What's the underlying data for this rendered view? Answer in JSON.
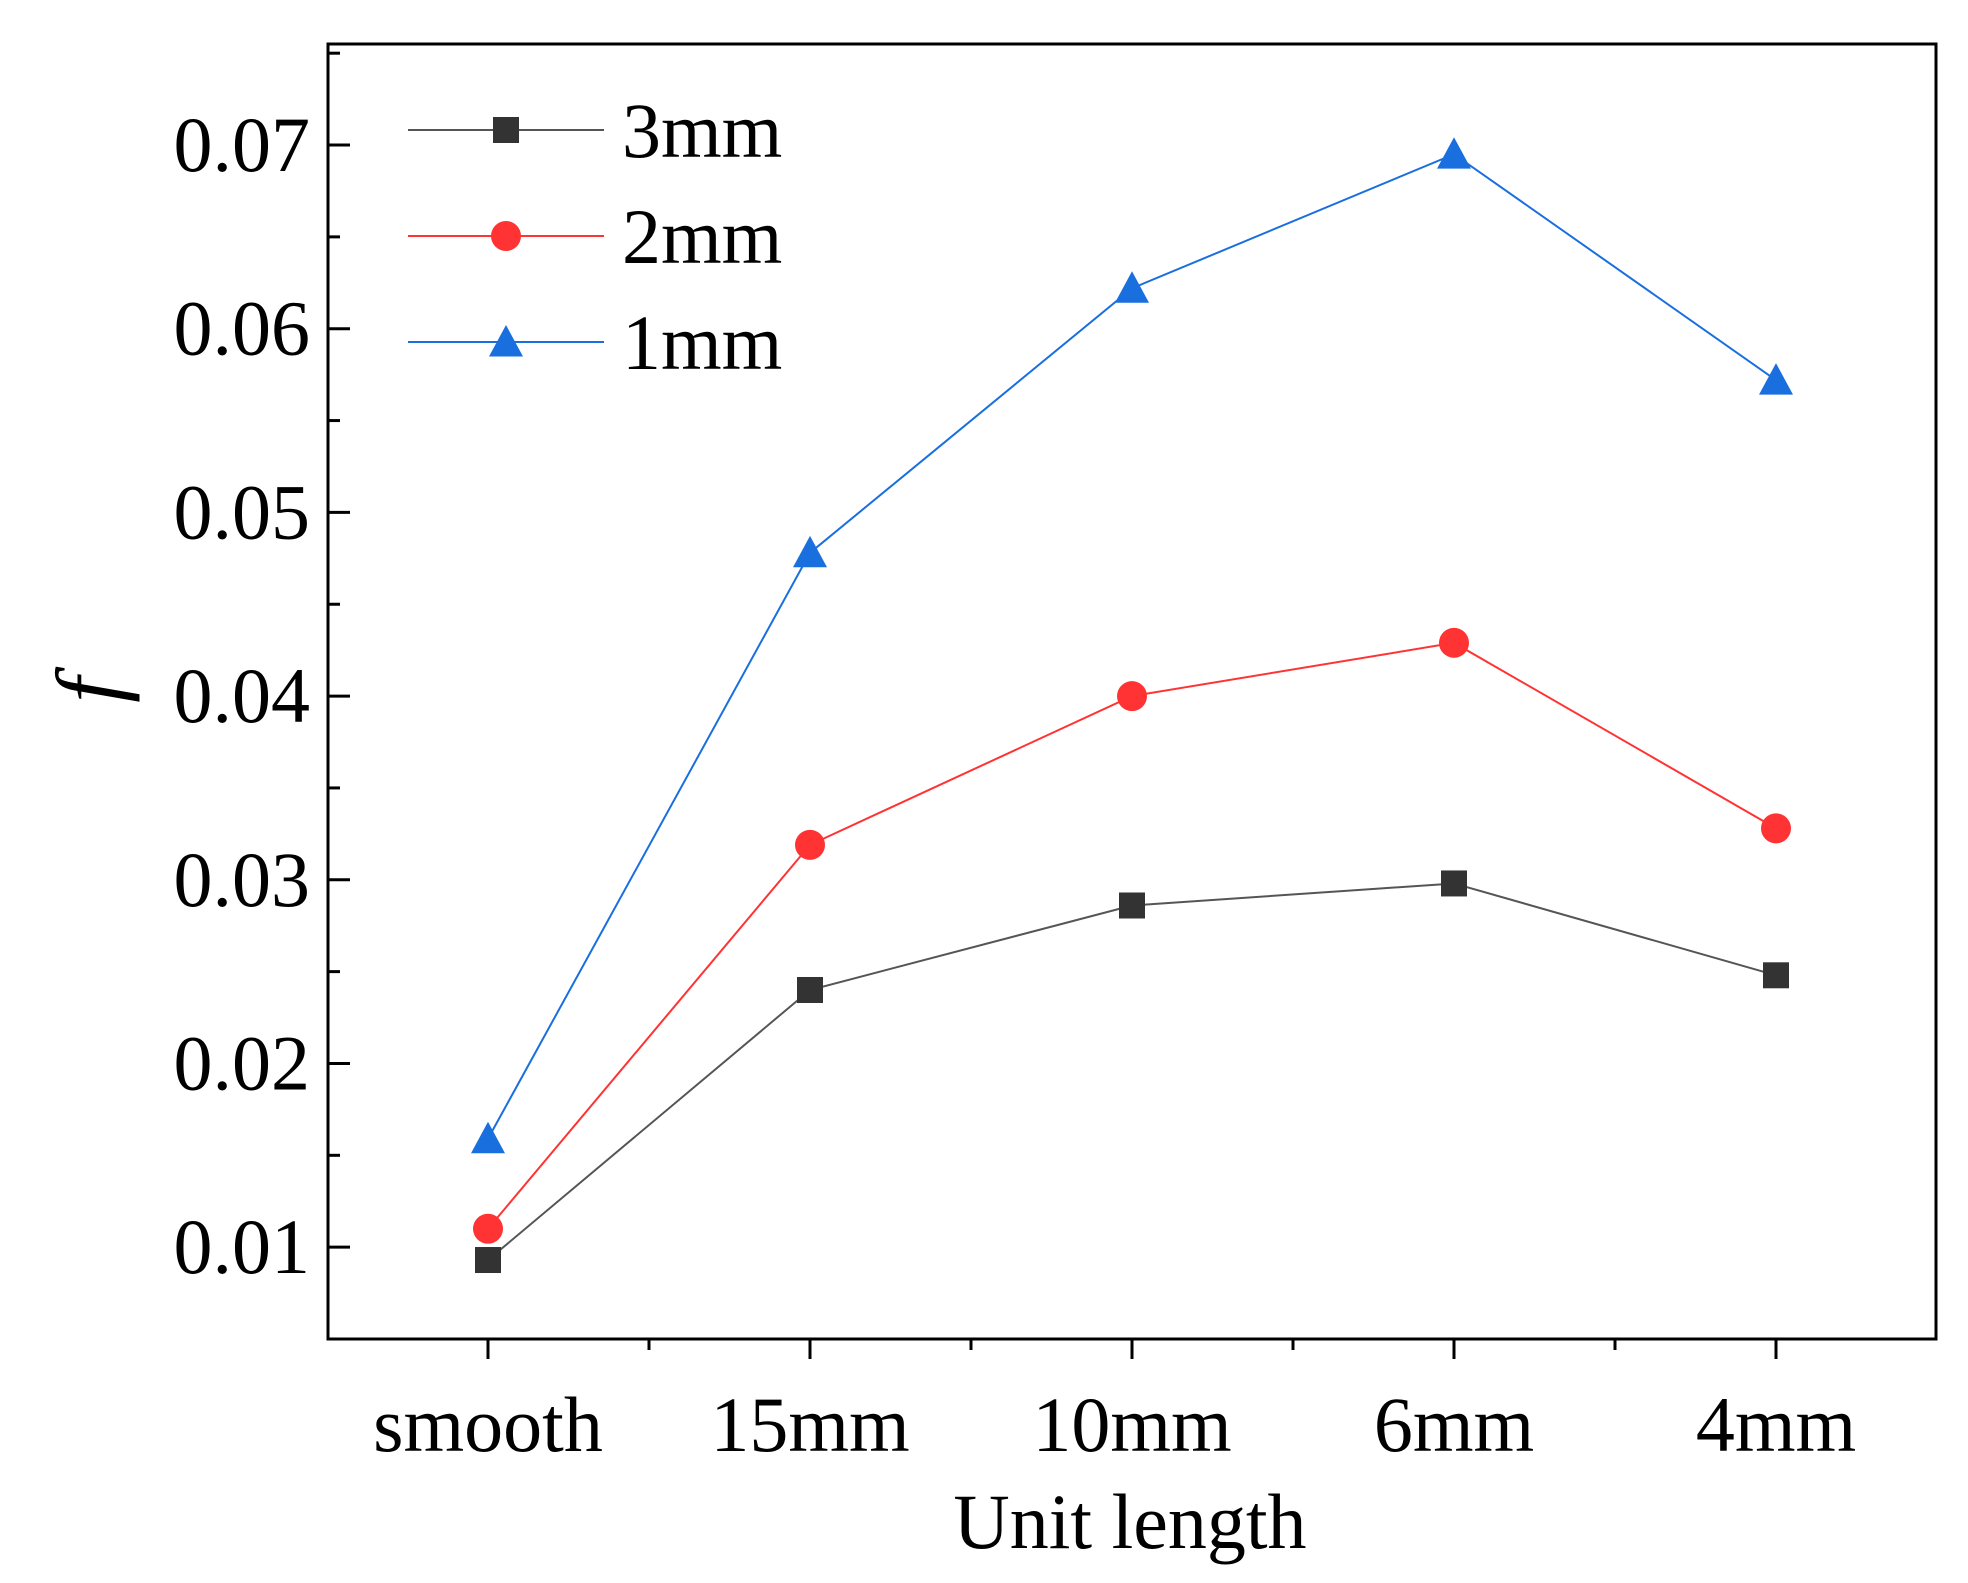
{
  "chart_data": {
    "type": "line",
    "title": "",
    "xlabel": "Unit length",
    "ylabel": "f",
    "categories": [
      "smooth",
      "15mm",
      "10mm",
      "6mm",
      "4mm"
    ],
    "ylim": [
      0.005,
      0.0755
    ],
    "yticks": [
      0.01,
      0.02,
      0.03,
      0.04,
      0.05,
      0.06,
      0.07
    ],
    "ytick_labels": [
      "0.01",
      "0.02",
      "0.03",
      "0.04",
      "0.05",
      "0.06",
      "0.07"
    ],
    "grid": false,
    "legend_position": "top-left",
    "series": [
      {
        "name": "3mm",
        "marker": "square",
        "color": "#333333",
        "line_color": "#555555",
        "values": [
          0.0093,
          0.024,
          0.0286,
          0.0298,
          0.0248
        ]
      },
      {
        "name": "2mm",
        "marker": "circle",
        "color": "#ff3333",
        "line_color": "#ff3333",
        "values": [
          0.011,
          0.0319,
          0.04,
          0.0429,
          0.0328
        ]
      },
      {
        "name": "1mm",
        "marker": "triangle",
        "color": "#1a6fdf",
        "line_color": "#1a6fdf",
        "values": [
          0.0159,
          0.0478,
          0.0622,
          0.0695,
          0.0572
        ]
      }
    ]
  }
}
